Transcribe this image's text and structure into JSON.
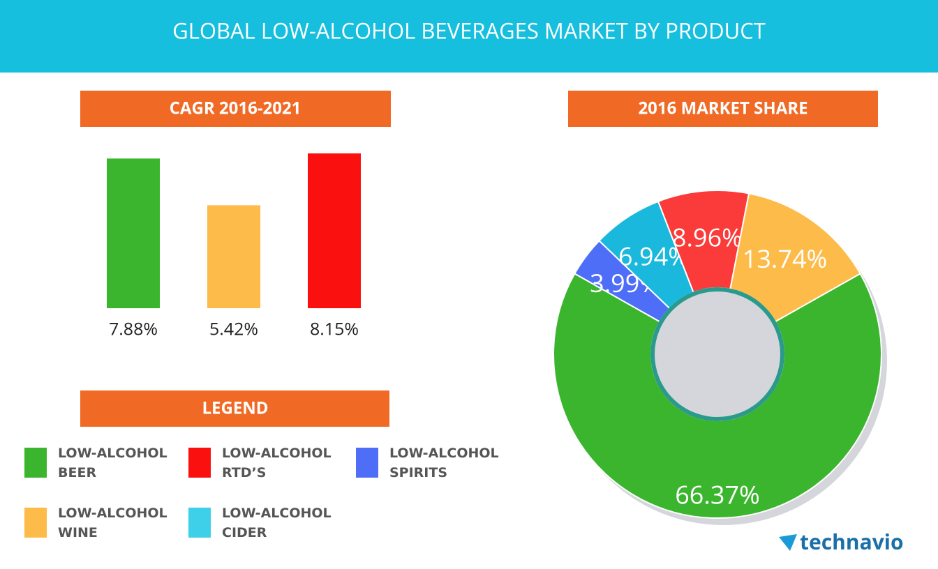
{
  "header": {
    "title": "GLOBAL LOW-ALCOHOL BEVERAGES MARKET BY PRODUCT"
  },
  "chart_data": [
    {
      "type": "bar",
      "title": "CAGR 2016-2021",
      "values": [
        7.88,
        5.42,
        8.15
      ],
      "value_labels": [
        "7.88%",
        "5.42%",
        "8.15%"
      ],
      "colors": [
        "#3cb52e",
        "#fdbb4a",
        "#fb1010"
      ]
    },
    {
      "type": "pie",
      "title": "2016 MARKET SHARE",
      "values": [
        66.37,
        3.99,
        6.94,
        8.96,
        13.74
      ],
      "value_labels": [
        "66.37%",
        "3.99%",
        "6.94%",
        "8.96%",
        "13.74%"
      ],
      "colors": [
        "#3cb52e",
        "#4f6ef7",
        "#1ab8dc",
        "#fb3a3a",
        "#fdbb4a"
      ]
    }
  ],
  "legend": {
    "title": "LEGEND",
    "items": [
      {
        "label": "LOW-ALCOHOL BEER",
        "color": "#3cb52e"
      },
      {
        "label": "LOW-ALCOHOL RTD’S",
        "color": "#fb1010"
      },
      {
        "label": "LOW-ALCOHOL SPIRITS",
        "color": "#4f6ef7"
      },
      {
        "label": "LOW-ALCOHOL WINE",
        "color": "#fdbb4a"
      },
      {
        "label": "LOW-ALCOHOL CIDER",
        "color": "#3dd0e8"
      }
    ]
  },
  "brand": "technavio"
}
